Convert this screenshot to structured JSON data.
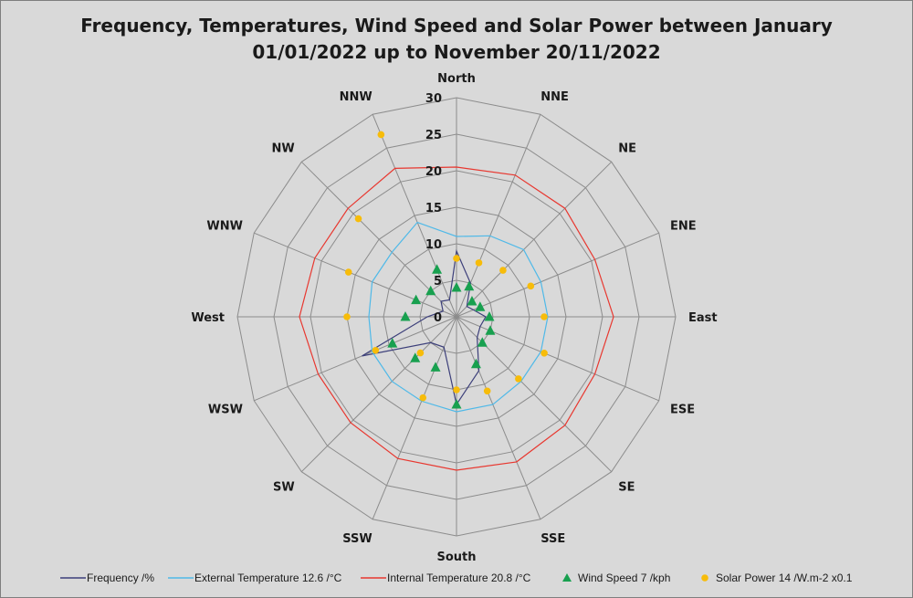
{
  "chart_data": {
    "type": "radar",
    "title_line1": "Frequency, Temperatures, Wind Speed and Solar Power between January",
    "title_line2": "01/01/2022 up to November 20/11/2022",
    "categories": [
      "North",
      "NNE",
      "NE",
      "ENE",
      "East",
      "ESE",
      "SE",
      "SSE",
      "South",
      "SSW",
      "SW",
      "WSW",
      "West",
      "WNW",
      "NW",
      "NNW"
    ],
    "rlim": [
      0,
      30
    ],
    "r_ticks": [
      "0",
      "5",
      "10",
      "15",
      "20",
      "25",
      "30"
    ],
    "r_tick_values": [
      0,
      5,
      10,
      15,
      20,
      25,
      30
    ],
    "grid": true,
    "legend_position": "bottom",
    "series": [
      {
        "name": "Frequency /%",
        "kind": "line",
        "color": "#3c3f7a",
        "values": [
          9,
          5,
          2,
          2.5,
          4,
          3.5,
          4,
          8,
          12,
          4.5,
          5,
          14,
          4,
          2,
          3,
          2.5
        ]
      },
      {
        "name": "External Temperature 12.6 /°C",
        "kind": "line",
        "color": "#4fb9e8",
        "values": [
          11,
          12,
          13,
          12.5,
          12.5,
          12.5,
          12.5,
          13,
          13,
          12.5,
          12.5,
          12.5,
          12,
          12.5,
          12.5,
          14
        ]
      },
      {
        "name": "Internal Temperature 20.8 /°C",
        "kind": "line",
        "color": "#e8372f",
        "values": [
          20.5,
          21,
          21,
          20.5,
          21.5,
          20.5,
          21,
          21.5,
          21,
          21,
          20.5,
          20.5,
          21.5,
          21,
          21,
          22
        ]
      },
      {
        "name": "Wind Speed 7 /kph",
        "kind": "marker",
        "shape": "triangle",
        "color": "#18a04f",
        "values": [
          4,
          4.5,
          3,
          3.5,
          4.5,
          5,
          5,
          7,
          12,
          7.5,
          8,
          9.5,
          7,
          6,
          5,
          7
        ]
      },
      {
        "name": "Solar Power 14 /W.m-2 x0.1",
        "kind": "marker",
        "shape": "circle",
        "color": "#f7bc0a",
        "values": [
          8,
          8,
          9,
          11,
          12,
          13,
          12,
          11,
          10,
          12,
          7,
          12,
          15,
          16,
          19,
          27
        ]
      }
    ]
  }
}
